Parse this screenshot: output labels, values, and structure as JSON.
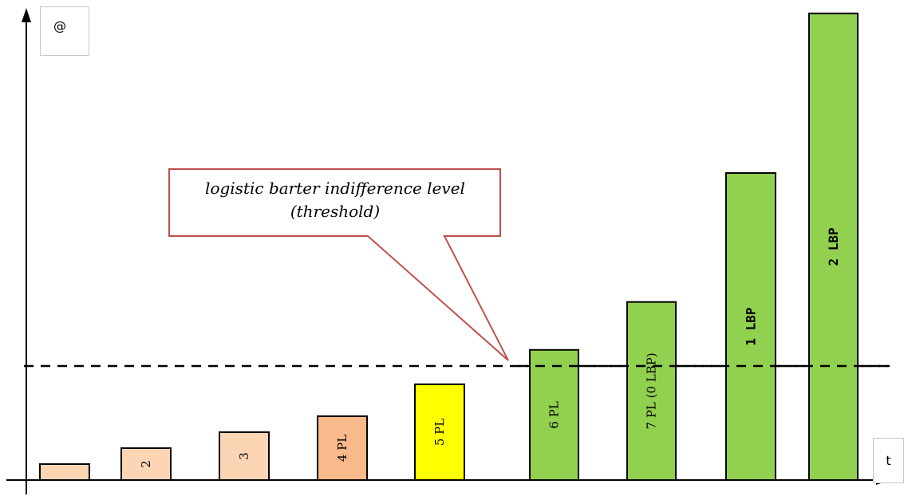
{
  "axes": {
    "y_label": "@",
    "x_label": "t"
  },
  "callout": {
    "line1": "logistic barter indifference level",
    "line2": "(threshold)"
  },
  "threshold_level": 4,
  "bars": [
    {
      "label": "",
      "value": 0.65,
      "color": "#fcd5b5"
    },
    {
      "label": "2",
      "value": 1.3,
      "color": "#fcd5b5"
    },
    {
      "label": "3",
      "value": 1.95,
      "color": "#fcd5b5"
    },
    {
      "label": "4 PL",
      "value": 2.6,
      "color": "#fab98a"
    },
    {
      "label": "5 PL",
      "value": 3.9,
      "color": "#ffff00"
    },
    {
      "label": "6 PL",
      "value": 5.3,
      "color": "#92d050"
    },
    {
      "label": "7 PL (0 LBP)",
      "value": 7.25,
      "color": "#92d050"
    },
    {
      "label": "1 LBP",
      "value": 12.5,
      "color": "#92d050",
      "bold": true
    },
    {
      "label": "2 LBP",
      "value": 19.0,
      "color": "#92d050",
      "bold": true
    }
  ],
  "colors": {
    "callout_border": "#c0504d",
    "axis": "#000000",
    "threshold_line": "#000000"
  }
}
